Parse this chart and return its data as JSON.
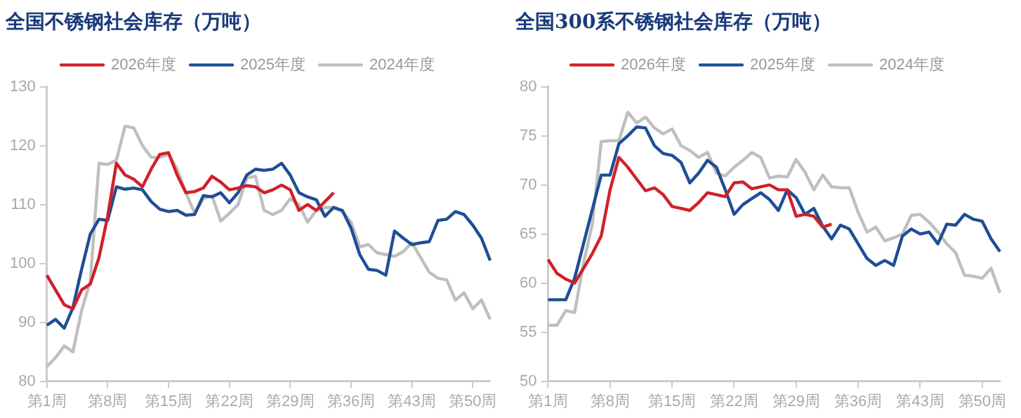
{
  "chart_data": [
    {
      "type": "line",
      "title": "全国不锈钢社会库存（万吨）",
      "legend": "top",
      "grid": false,
      "marker": "none",
      "categories": [
        "第1周",
        null,
        null,
        null,
        null,
        null,
        null,
        "第8周",
        null,
        null,
        null,
        null,
        null,
        null,
        "第15周",
        null,
        null,
        null,
        null,
        null,
        null,
        "第22周",
        null,
        null,
        null,
        null,
        null,
        null,
        "第29周",
        null,
        null,
        null,
        null,
        null,
        null,
        "第36周",
        null,
        null,
        null,
        null,
        null,
        null,
        "第43周",
        null,
        null,
        null,
        null,
        null,
        null,
        "第50周",
        null,
        null
      ],
      "ylim": [
        80,
        130
      ],
      "yticks": [
        80,
        90,
        100,
        110,
        120,
        130
      ],
      "series": [
        {
          "name": "2026年度",
          "color": "#d0202a",
          "values": [
            98,
            95.5,
            93,
            92.3,
            95.5,
            96.5,
            101,
            108,
            117,
            115,
            114.3,
            113,
            116,
            118.5,
            118.8,
            115,
            112,
            112.2,
            112.8,
            114.8,
            113.8,
            112.5,
            112.8,
            113.2,
            113,
            112,
            112.5,
            113.3,
            112.5,
            109,
            110,
            109,
            110.5,
            112,
            null,
            null,
            null,
            null,
            null,
            null,
            null,
            null,
            null,
            null,
            null,
            null,
            null,
            null,
            null,
            null,
            null,
            null
          ]
        },
        {
          "name": "2025年度",
          "color": "#1f4e96",
          "values": [
            89.5,
            90.5,
            89,
            92.5,
            99,
            105,
            107.5,
            107.3,
            113,
            112.6,
            112.8,
            112.5,
            110.5,
            109.2,
            108.8,
            109,
            108.2,
            108.3,
            111.5,
            111.3,
            112,
            110.3,
            112,
            115,
            116,
            115.8,
            116,
            117,
            115,
            112,
            111.3,
            110.8,
            108,
            109.5,
            109,
            106,
            101.5,
            99,
            98.8,
            98,
            105.5,
            104.3,
            103.2,
            103.5,
            103.7,
            107.3,
            107.5,
            108.8,
            108.3,
            106.5,
            104.3,
            100.5
          ]
        },
        {
          "name": "2024年度",
          "color": "#bfbfbf",
          "values": [
            82.5,
            84,
            86,
            85,
            92,
            97,
            117,
            116.8,
            117.5,
            123.3,
            123,
            120,
            118,
            118,
            118.5,
            116,
            112,
            108.5,
            111,
            111.5,
            107.2,
            108.5,
            110,
            114.5,
            114.8,
            109,
            108.3,
            109,
            111,
            110,
            107,
            109,
            109.5,
            109.5,
            108.8,
            107,
            102.8,
            103.2,
            101.8,
            101.5,
            101.2,
            102,
            103.5,
            101,
            98.5,
            97.5,
            97.2,
            93.8,
            95,
            92.3,
            93.8,
            90.5
          ]
        }
      ]
    },
    {
      "type": "line",
      "title": "全国300系不锈钢社会库存（万吨）",
      "legend": "top",
      "grid": false,
      "marker": "none",
      "categories": [
        "第1周",
        null,
        null,
        null,
        null,
        null,
        null,
        "第8周",
        null,
        null,
        null,
        null,
        null,
        null,
        "第15周",
        null,
        null,
        null,
        null,
        null,
        null,
        "第22周",
        null,
        null,
        null,
        null,
        null,
        null,
        "第29周",
        null,
        null,
        null,
        null,
        null,
        null,
        "第36周",
        null,
        null,
        null,
        null,
        null,
        null,
        "第43周",
        null,
        null,
        null,
        null,
        null,
        null,
        "第50周",
        null,
        null
      ],
      "ylim": [
        50,
        80
      ],
      "yticks": [
        50,
        55,
        60,
        65,
        70,
        75,
        80
      ],
      "series": [
        {
          "name": "2026年度",
          "color": "#d0202a",
          "values": [
            62.4,
            61,
            60.4,
            60,
            61.5,
            63,
            64.8,
            69.5,
            72.8,
            71.8,
            70.6,
            69.4,
            69.7,
            69,
            67.8,
            67.6,
            67.4,
            68.2,
            69.2,
            69,
            68.8,
            70.2,
            70.3,
            69.6,
            69.8,
            70,
            69.5,
            69.5,
            66.8,
            67,
            66.8,
            65.7,
            66,
            null,
            null,
            null,
            null,
            null,
            null,
            null,
            null,
            null,
            null,
            null,
            null,
            null,
            null,
            null,
            null,
            null,
            null,
            null
          ]
        },
        {
          "name": "2025年度",
          "color": "#1f4e96",
          "values": [
            58.3,
            58.3,
            58.3,
            60.5,
            64,
            67.5,
            71,
            71,
            74.2,
            75,
            75.9,
            75.8,
            74,
            73.2,
            73,
            72.3,
            70.2,
            71.2,
            72.5,
            71.8,
            69.5,
            67,
            68,
            68.6,
            69.2,
            68.5,
            67.4,
            69.5,
            68.7,
            67,
            67.6,
            65.8,
            64.5,
            65.9,
            65.5,
            64,
            62.5,
            61.8,
            62.3,
            61.8,
            64.8,
            65.5,
            65,
            65.2,
            64,
            66,
            65.9,
            67,
            66.5,
            66.3,
            64.5,
            63.2
          ]
        },
        {
          "name": "2024年度",
          "color": "#bfbfbf",
          "values": [
            55.7,
            55.7,
            57.2,
            57,
            62,
            66,
            74.4,
            74.5,
            74.5,
            77.4,
            76.3,
            76.9,
            75.8,
            75.2,
            75.7,
            74,
            73.5,
            72.8,
            73.3,
            71.2,
            70.9,
            71.8,
            72.5,
            73.3,
            72.8,
            70.7,
            70.9,
            70.8,
            72.6,
            71.3,
            69.5,
            71,
            69.8,
            69.7,
            69.7,
            67.2,
            65.2,
            65.7,
            64.3,
            64.6,
            65,
            66.9,
            67,
            66.2,
            65.2,
            64,
            63.1,
            60.8,
            60.7,
            60.5,
            61.5,
            59
          ]
        }
      ]
    }
  ]
}
